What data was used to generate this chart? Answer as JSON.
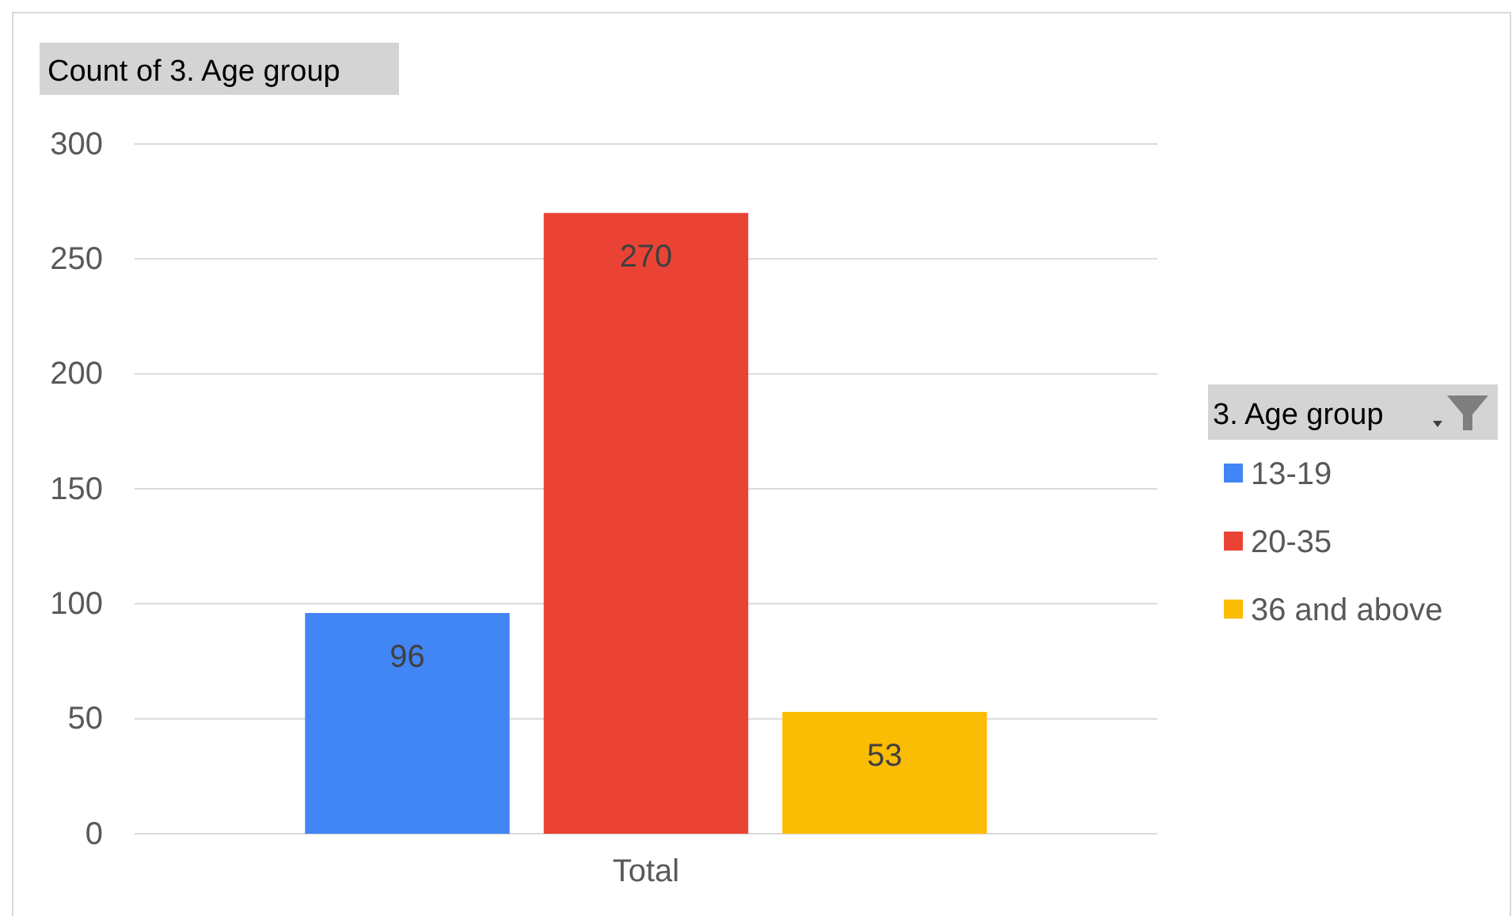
{
  "chart_data": {
    "type": "bar",
    "title": "Count of 3. Age group",
    "legend_title": "3. Age group",
    "categories": [
      "Total"
    ],
    "series": [
      {
        "name": "13-19",
        "color": "#4285f4",
        "values": [
          96
        ]
      },
      {
        "name": "20-35",
        "color": "#ea4335",
        "values": [
          270
        ]
      },
      {
        "name": "36 and above",
        "color": "#fbbc04",
        "values": [
          53
        ]
      }
    ],
    "ylim": [
      0,
      300
    ],
    "yticks": [
      0,
      50,
      100,
      150,
      200,
      250,
      300
    ],
    "grid": "y",
    "legend": "right",
    "data_labels": true
  }
}
